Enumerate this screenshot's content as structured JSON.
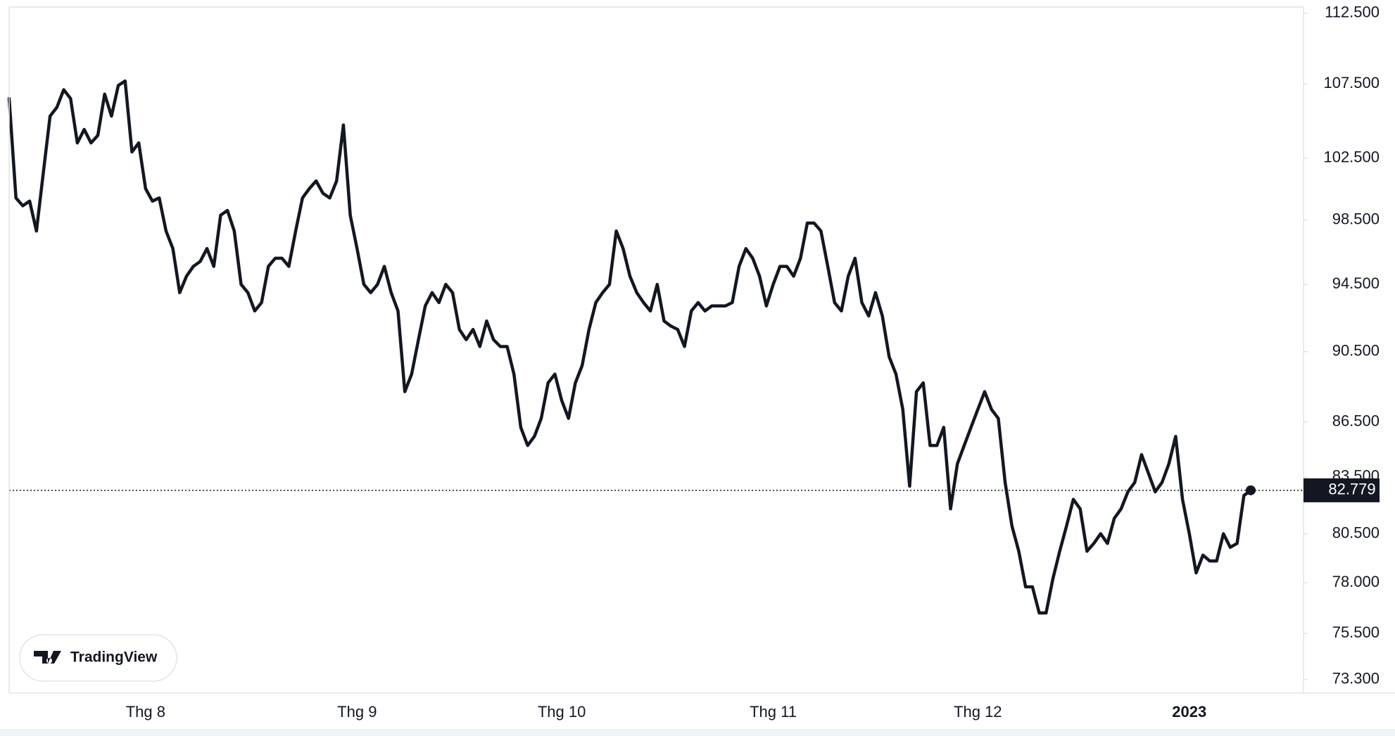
{
  "chart_data": {
    "type": "line",
    "watermark": "TradingView",
    "log_scale": true,
    "color": "#131722",
    "last_price": 82.779,
    "ylim": [
      72.66,
      112.95
    ],
    "yticks": [
      {
        "value": 73.3,
        "label": "73.300"
      },
      {
        "value": 75.5,
        "label": "75.500"
      },
      {
        "value": 78,
        "label": "78.000"
      },
      {
        "value": 80.5,
        "label": "80.500"
      },
      {
        "value": 83.5,
        "label": "83.500"
      },
      {
        "value": 86.5,
        "label": "86.500"
      },
      {
        "value": 90.5,
        "label": "90.500"
      },
      {
        "value": 94.5,
        "label": "94.500"
      },
      {
        "value": 98.5,
        "label": "98.500"
      },
      {
        "value": 102.5,
        "label": "102.500"
      },
      {
        "value": 107.5,
        "label": "107.500"
      },
      {
        "value": 112.5,
        "label": "112.500"
      }
    ],
    "categories": [
      null,
      null,
      null,
      null,
      null,
      null,
      null,
      null,
      null,
      null,
      null,
      null,
      null,
      null,
      null,
      null,
      null,
      null,
      null,
      null,
      "Thg 8",
      null,
      null,
      null,
      null,
      null,
      null,
      null,
      null,
      null,
      null,
      null,
      null,
      null,
      null,
      null,
      null,
      null,
      null,
      null,
      null,
      null,
      null,
      null,
      null,
      null,
      null,
      null,
      null,
      null,
      null,
      "Thg 9",
      null,
      null,
      null,
      null,
      null,
      null,
      null,
      null,
      null,
      null,
      null,
      null,
      null,
      null,
      null,
      null,
      null,
      null,
      null,
      null,
      null,
      null,
      null,
      null,
      null,
      null,
      null,
      null,
      null,
      "Thg 10",
      null,
      null,
      null,
      null,
      null,
      null,
      null,
      null,
      null,
      null,
      null,
      null,
      null,
      null,
      null,
      null,
      null,
      null,
      null,
      null,
      null,
      null,
      null,
      null,
      null,
      null,
      null,
      null,
      null,
      null,
      "Thg 11",
      null,
      null,
      null,
      null,
      null,
      null,
      null,
      null,
      null,
      null,
      null,
      null,
      null,
      null,
      null,
      null,
      null,
      null,
      null,
      null,
      null,
      null,
      null,
      null,
      null,
      null,
      null,
      null,
      null,
      "Thg 12",
      null,
      null,
      null,
      null,
      null,
      null,
      null,
      null,
      null,
      null,
      null,
      null,
      null,
      null,
      null,
      null,
      null,
      null,
      null,
      null,
      null,
      null,
      null,
      null,
      null,
      null,
      null,
      null,
      null,
      null,
      "2023",
      null,
      null,
      null,
      null,
      null,
      null,
      null,
      null,
      null
    ],
    "values": [
      106.5,
      99.9,
      99.4,
      99.7,
      97.8,
      101.5,
      105.3,
      105.9,
      107.1,
      106.5,
      103.5,
      104.4,
      103.5,
      104.0,
      106.8,
      105.3,
      107.4,
      107.7,
      102.9,
      103.5,
      100.5,
      99.7,
      99.9,
      97.8,
      96.7,
      94.0,
      95.0,
      95.6,
      95.9,
      96.7,
      95.6,
      98.8,
      99.1,
      97.8,
      94.5,
      94.0,
      92.9,
      93.4,
      95.6,
      96.1,
      96.1,
      95.6,
      97.8,
      99.9,
      100.5,
      101.0,
      100.2,
      99.9,
      101.0,
      104.7,
      98.8,
      96.7,
      94.5,
      94.0,
      94.5,
      95.6,
      94.0,
      92.9,
      88.2,
      89.2,
      91.2,
      93.2,
      94.0,
      93.4,
      94.5,
      94.0,
      91.8,
      91.2,
      91.8,
      90.8,
      92.3,
      91.2,
      90.8,
      90.8,
      89.2,
      86.2,
      85.2,
      85.7,
      86.7,
      88.7,
      89.2,
      87.7,
      86.7,
      88.7,
      89.7,
      91.8,
      93.4,
      94.0,
      94.5,
      97.8,
      96.7,
      95.0,
      94.0,
      93.4,
      92.9,
      94.5,
      92.3,
      92.0,
      91.8,
      90.8,
      92.9,
      93.4,
      92.9,
      93.2,
      93.2,
      93.2,
      93.4,
      95.6,
      96.7,
      96.1,
      95.0,
      93.2,
      94.5,
      95.6,
      95.6,
      95.0,
      96.1,
      98.3,
      98.3,
      97.8,
      95.6,
      93.4,
      92.9,
      95.0,
      96.1,
      93.4,
      92.6,
      94.0,
      92.6,
      90.2,
      89.2,
      87.2,
      83.0,
      88.2,
      88.7,
      85.2,
      85.2,
      86.2,
      81.8,
      84.2,
      85.2,
      86.2,
      87.2,
      88.2,
      87.2,
      86.7,
      83.2,
      80.9,
      79.6,
      77.8,
      77.8,
      76.5,
      76.5,
      78.2,
      79.6,
      80.9,
      82.3,
      81.8,
      79.6,
      80.0,
      80.5,
      80.0,
      81.3,
      81.8,
      82.7,
      83.2,
      84.7,
      83.7,
      82.7,
      83.2,
      84.2,
      85.7,
      82.3,
      80.5,
      78.5,
      79.4,
      79.1,
      79.1,
      80.5,
      79.8,
      80.0,
      82.5,
      82.779
    ]
  }
}
